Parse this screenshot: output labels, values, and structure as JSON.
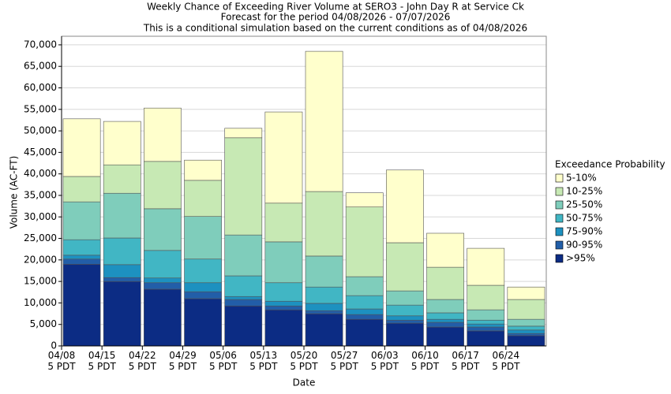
{
  "chart_data": {
    "type": "stacked_bar",
    "title": "Weekly Chance of Exceeding River Volume at SERO3 - John Day R at Service Ck",
    "subtitle": "Forecast for the period 04/08/2026 - 07/07/2026",
    "subtitle2": "This is a conditional simulation based on the current conditions as of 04/08/2026",
    "x_label": "Date",
    "y_label": "Volume (AC-FT)",
    "legend_title": "Exceedance Probability",
    "legend": "right",
    "grid": true,
    "categories": [
      "04/08 5 PDT",
      "04/15 5 PDT",
      "04/22 5 PDT",
      "04/29 5 PDT",
      "05/06 5 PDT",
      "05/13 5 PDT",
      "05/20 5 PDT",
      "05/27 5 PDT",
      "06/03 5 PDT",
      "06/10 5 PDT",
      "06/17 5 PDT",
      "06/24 5 PDT"
    ],
    "ylim": [
      0,
      72000
    ],
    "yticks": [
      0,
      {
        "value": 5000,
        "label": "5,000"
      },
      {
        "value": 10000,
        "label": "10,000"
      },
      {
        "value": 15000,
        "label": "15,000"
      },
      {
        "value": 20000,
        "label": "20,000"
      },
      {
        "value": 25000,
        "label": "25,000"
      },
      {
        "value": 30000,
        "label": "30,000"
      },
      {
        "value": 35000,
        "label": "35,000"
      },
      {
        "value": 40000,
        "label": "40,000"
      },
      {
        "value": 45000,
        "label": "45,000"
      },
      {
        "value": 50000,
        "label": "50,000"
      },
      {
        "value": 55000,
        "label": "55,000"
      },
      {
        "value": 60000,
        "label": "60,000"
      },
      {
        "value": 65000,
        "label": "65,000"
      },
      {
        "value": 70000,
        "label": "70,000"
      }
    ],
    "series": [
      {
        "name": ">95%",
        "color": "#0c2c84",
        "values": [
          19000,
          15000,
          13200,
          11000,
          9300,
          8400,
          7500,
          6200,
          5300,
          4400,
          3500,
          2400
        ]
      },
      {
        "name": "90-95%",
        "color": "#225ea8",
        "values": [
          1200,
          900,
          1500,
          1600,
          1500,
          900,
          700,
          1100,
          700,
          1100,
          900,
          500
        ]
      },
      {
        "name": "75-90%",
        "color": "#1d91c0",
        "values": [
          900,
          3000,
          1100,
          2100,
          700,
          1100,
          1700,
          1300,
          1000,
          700,
          700,
          800
        ]
      },
      {
        "name": "50-75%",
        "color": "#41b6c4",
        "values": [
          3600,
          6200,
          6400,
          5500,
          4800,
          4300,
          3800,
          3100,
          2500,
          1500,
          900,
          900
        ]
      },
      {
        "name": "25-50%",
        "color": "#7fcdbb",
        "values": [
          8800,
          10400,
          9700,
          9900,
          9500,
          9500,
          7200,
          4400,
          3300,
          3100,
          2400,
          1600
        ]
      },
      {
        "name": "10-25%",
        "color": "#c7e9b4",
        "values": [
          5900,
          6600,
          11000,
          8400,
          22600,
          9000,
          15000,
          16200,
          11200,
          7500,
          5700,
          4600
        ]
      },
      {
        "name": "5-10%",
        "color": "#ffffcc",
        "values": [
          13400,
          10100,
          12400,
          4700,
          2200,
          21200,
          32600,
          3300,
          16900,
          7900,
          8600,
          2900
        ]
      }
    ]
  }
}
